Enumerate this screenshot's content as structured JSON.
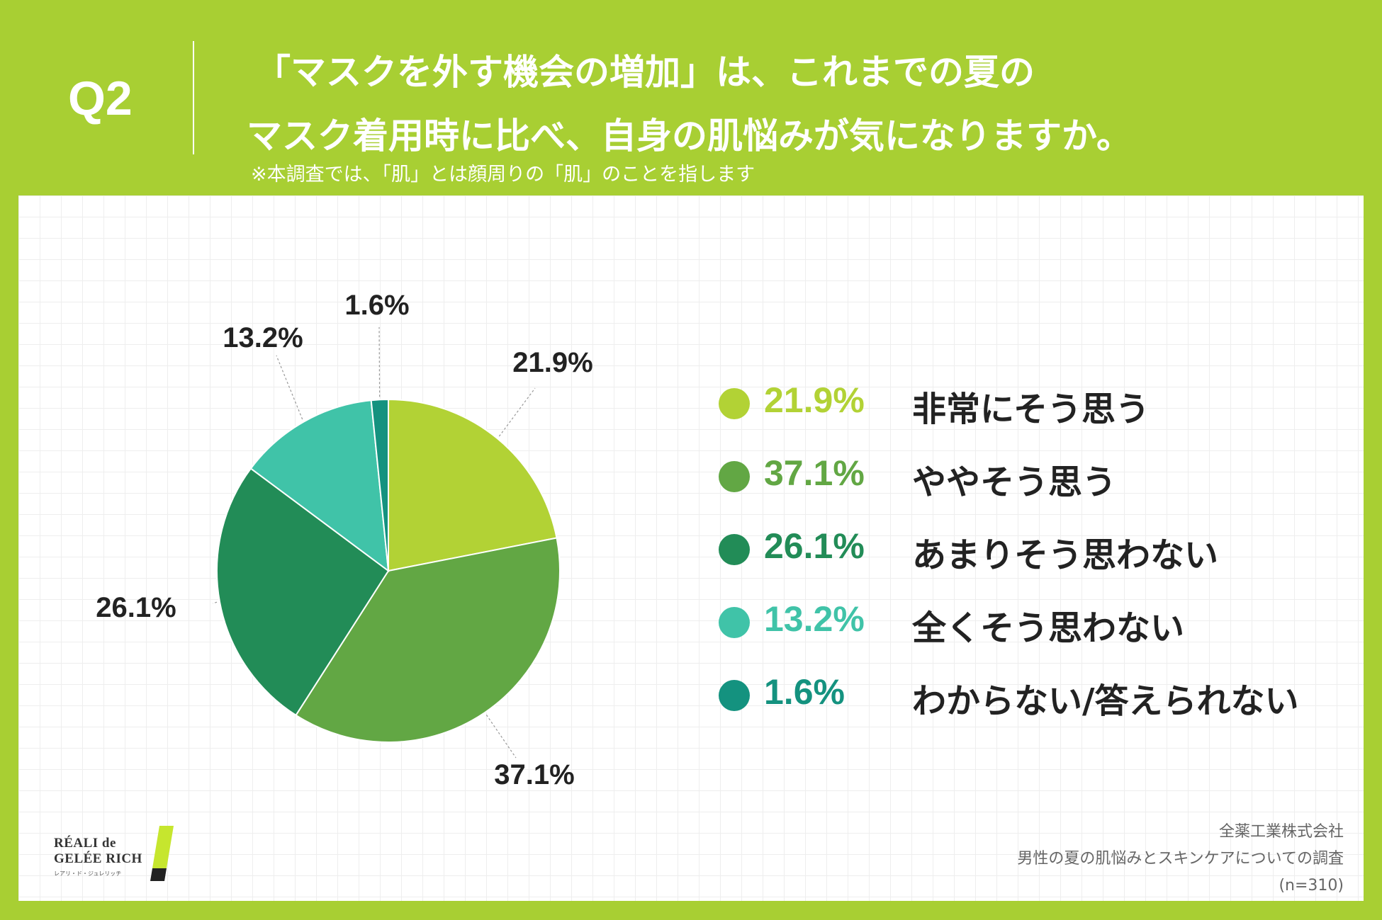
{
  "header": {
    "question_label": "Q2",
    "title_line1": "「マスクを外す機会の増加」は、これまでの夏の",
    "title_line2": "マスク着用時に比べ、自身の肌悩みが気になりますか。",
    "note": "※本調査では、「肌」とは顔周りの「肌」のことを指します"
  },
  "chart_data": {
    "type": "pie",
    "start": "12 o'clock, clockwise",
    "slices": [
      {
        "label": "非常にそう思う",
        "value": 21.9,
        "value_label": "21.9%",
        "color": "#b2d235"
      },
      {
        "label": "ややそう思う",
        "value": 37.1,
        "value_label": "37.1%",
        "color": "#62a744"
      },
      {
        "label": "あまりそう思わない",
        "value": 26.1,
        "value_label": "26.1%",
        "color": "#228c57"
      },
      {
        "label": "全くそう思わない",
        "value": 13.2,
        "value_label": "13.2%",
        "color": "#40c3a8"
      },
      {
        "label": "わからない/答えられない",
        "value": 1.6,
        "value_label": "1.6%",
        "color": "#14927f"
      }
    ]
  },
  "legend": {
    "items": [
      {
        "pct": "21.9%",
        "label": "非常にそう思う"
      },
      {
        "pct": "37.1%",
        "label": "ややそう思う"
      },
      {
        "pct": "26.1%",
        "label": "あまりそう思わない"
      },
      {
        "pct": "13.2%",
        "label": "全くそう思わない"
      },
      {
        "pct": "1.6%",
        "label": "わからない/答えられない"
      }
    ]
  },
  "brand": {
    "line1": "RÉALI de",
    "line2": "GELÉE RICH",
    "kana": "レアリ・ド・ジュレリッチ"
  },
  "source": {
    "company": "全薬工業株式会社",
    "survey": "男性の夏の肌悩みとスキンケアについての調査",
    "sample": "(n=310)"
  }
}
